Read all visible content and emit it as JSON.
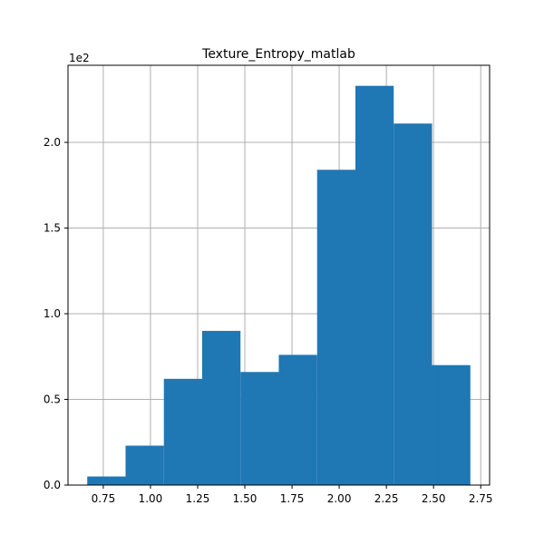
{
  "chart_data": {
    "type": "bar",
    "title": "Texture_Entropy_matlab",
    "xlabel": "",
    "ylabel": "",
    "y_offset_label": "1e2",
    "bins": [
      {
        "x0": 0.665,
        "x1": 0.868,
        "count": 5
      },
      {
        "x0": 0.868,
        "x1": 1.071,
        "count": 23
      },
      {
        "x0": 1.071,
        "x1": 1.274,
        "count": 62
      },
      {
        "x0": 1.274,
        "x1": 1.477,
        "count": 90
      },
      {
        "x0": 1.477,
        "x1": 1.68,
        "count": 66
      },
      {
        "x0": 1.68,
        "x1": 1.883,
        "count": 76
      },
      {
        "x0": 1.883,
        "x1": 2.086,
        "count": 184
      },
      {
        "x0": 2.086,
        "x1": 2.289,
        "count": 233
      },
      {
        "x0": 2.289,
        "x1": 2.492,
        "count": 211
      },
      {
        "x0": 2.492,
        "x1": 2.695,
        "count": 70
      }
    ],
    "xlim": [
      0.563,
      2.797
    ],
    "ylim": [
      0,
      245
    ],
    "xticks": [
      0.75,
      1.0,
      1.25,
      1.5,
      1.75,
      2.0,
      2.25,
      2.5,
      2.75
    ],
    "xtick_labels": [
      "0.75",
      "1.00",
      "1.25",
      "1.50",
      "1.75",
      "2.00",
      "2.25",
      "2.50",
      "2.75"
    ],
    "yticks": [
      0,
      50,
      100,
      150,
      200
    ],
    "ytick_labels": [
      "0.0",
      "0.5",
      "1.0",
      "1.5",
      "2.0"
    ],
    "grid": true,
    "bar_color": "#1f77b4",
    "grid_color": "#b0b0b0"
  }
}
